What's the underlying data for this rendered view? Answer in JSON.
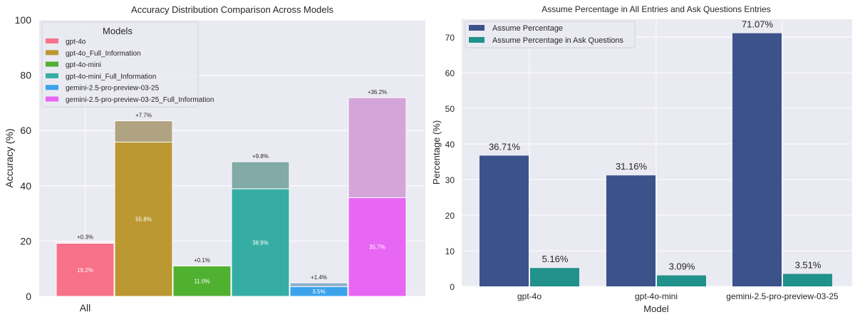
{
  "chart_data": [
    {
      "type": "bar",
      "title": "Accuracy Distribution Comparison Across Models",
      "xlabel": "",
      "ylabel": "Accuracy (%)",
      "ylim": [
        0,
        100
      ],
      "yticks": [
        "0",
        "20",
        "40",
        "60",
        "80",
        "100"
      ],
      "categories": [
        "All"
      ],
      "legend_title": "Models",
      "legend_position": "top-left",
      "grid": true,
      "series": [
        {
          "name": "gpt-4o",
          "value": 19.2,
          "delta": 0.3,
          "value_label": "19.2%",
          "delta_label": "+0.3%",
          "color": "#f77189",
          "ghost": "#f5a3b1"
        },
        {
          "name": "gpt-4o_Full_Information",
          "value": 55.8,
          "delta": 7.7,
          "value_label": "55.8%",
          "delta_label": "+7.7%",
          "color": "#bb9832",
          "ghost": "#b0a382"
        },
        {
          "name": "gpt-4o-mini",
          "value": 11.0,
          "delta": 0.1,
          "value_label": "11.0%",
          "delta_label": "+0.1%",
          "color": "#50b131",
          "ghost": "#8cbf7c"
        },
        {
          "name": "gpt-4o-mini_Full_Information",
          "value": 38.9,
          "delta": 9.8,
          "value_label": "38.9%",
          "delta_label": "+9.8%",
          "color": "#36ada4",
          "ghost": "#82aaa6"
        },
        {
          "name": "gemini-2.5-pro-preview-03-25",
          "value": 3.5,
          "delta": 1.4,
          "value_label": "3.5%",
          "delta_label": "+1.4%",
          "color": "#3ba3ec",
          "ghost": "#8eb0cc"
        },
        {
          "name": "gemini-2.5-pro-preview-03-25_Full_Information",
          "value": 35.7,
          "delta": 36.2,
          "value_label": "35.7%",
          "delta_label": "+36.2%",
          "color": "#e866f4",
          "ghost": "#d4a5d8"
        }
      ]
    },
    {
      "type": "bar",
      "title": "Assume Percentage in All Entries and Ask Questions Entries",
      "xlabel": "Model",
      "ylabel": "Percentage (%)",
      "ylim": [
        0,
        75
      ],
      "yticks": [
        "0",
        "10",
        "20",
        "30",
        "40",
        "50",
        "60",
        "70"
      ],
      "categories": [
        "gpt-4o",
        "gpt-4o-mini",
        "gemini-2.5-pro-preview-03-25"
      ],
      "legend_position": "top-left",
      "grid": true,
      "series": [
        {
          "name": "Assume Percentage",
          "values": [
            36.71,
            31.16,
            71.07
          ],
          "labels": [
            "36.71%",
            "31.16%",
            "71.07%"
          ],
          "color": "#3b528b"
        },
        {
          "name": "Assume Percentage in Ask Questions",
          "values": [
            5.16,
            3.09,
            3.51
          ],
          "labels": [
            "5.16%",
            "3.09%",
            "3.51%"
          ],
          "color": "#21918c"
        }
      ]
    }
  ]
}
